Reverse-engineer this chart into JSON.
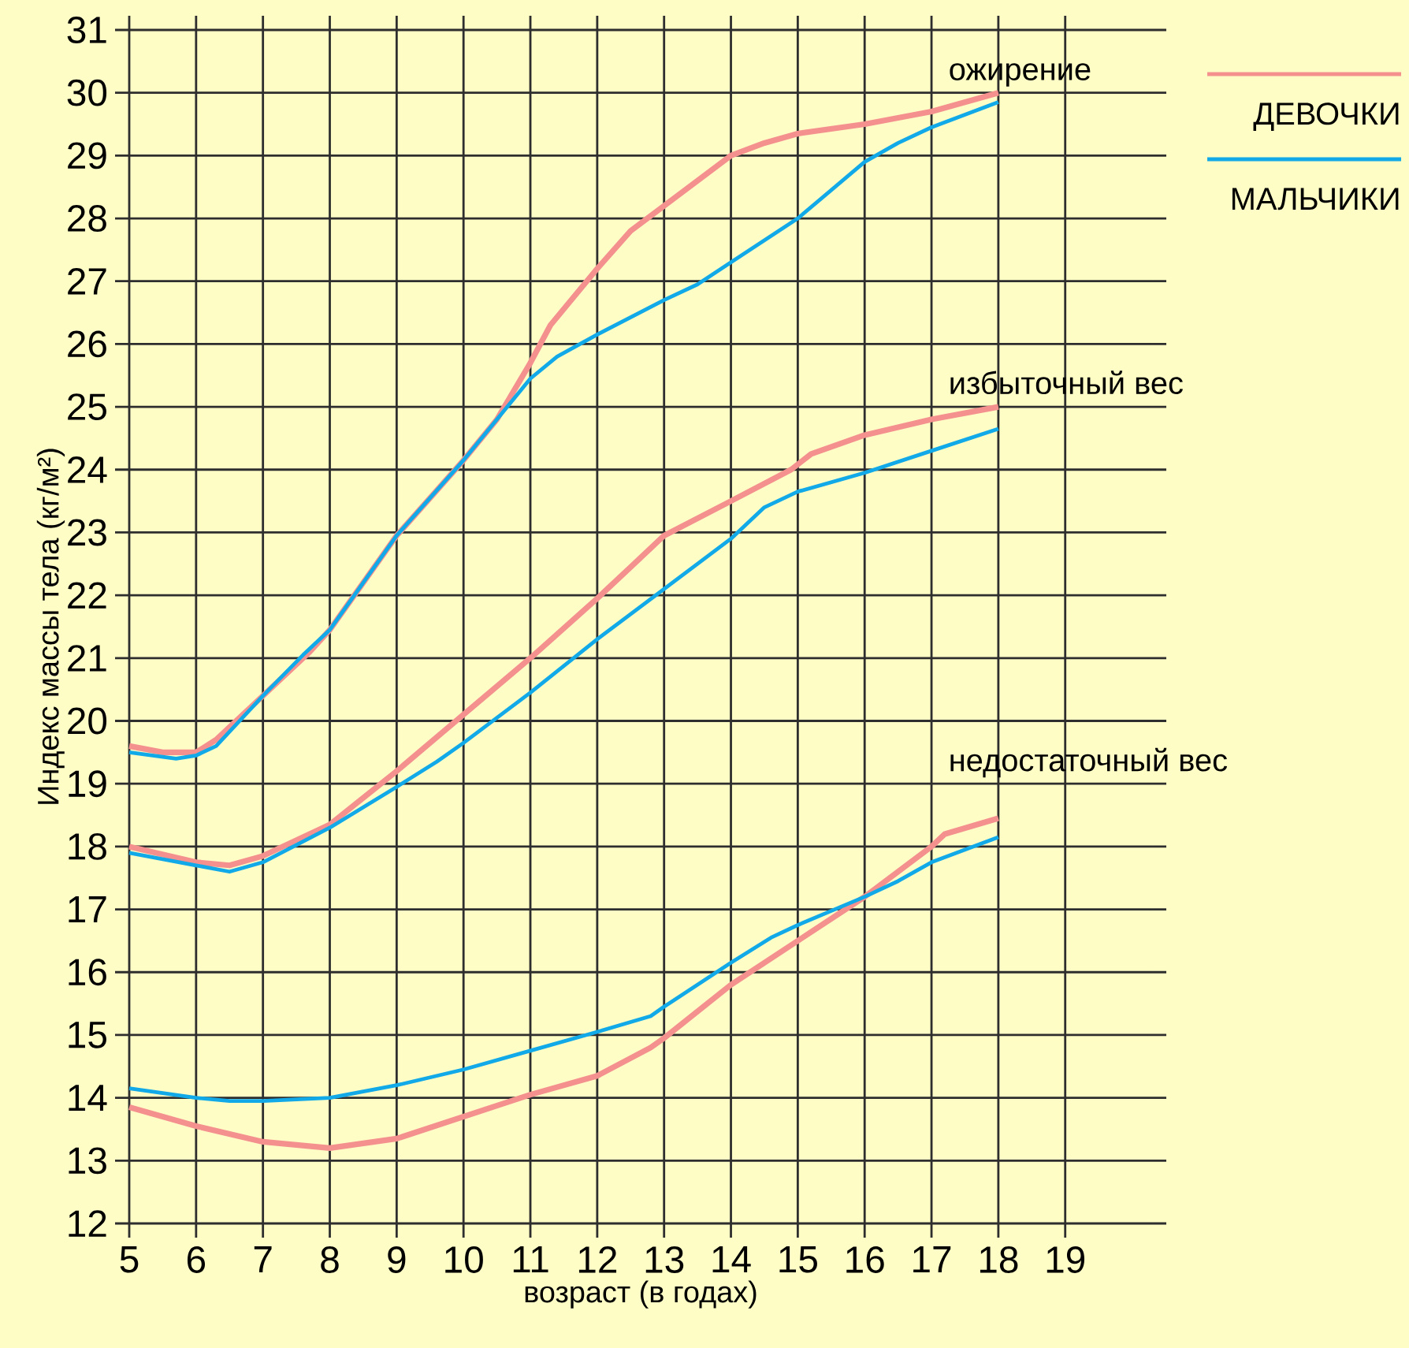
{
  "chart_data": {
    "type": "line",
    "xlabel": "возраст (в годах)",
    "ylabel": "Индекс массы тела (кг/м²)",
    "xlim": [
      5,
      20.3
    ],
    "ylim": [
      12,
      31
    ],
    "xticks": [
      5,
      6,
      7,
      8,
      9,
      10,
      11,
      12,
      13,
      14,
      15,
      16,
      17,
      18,
      19
    ],
    "yticks": [
      12,
      13,
      14,
      15,
      16,
      17,
      18,
      19,
      20,
      21,
      22,
      23,
      24,
      25,
      26,
      27,
      28,
      29,
      30,
      31
    ],
    "grid": true,
    "legend": "top right",
    "marker": "none",
    "line_style": "solid",
    "annotations": [
      "ожирение",
      "избыточный вес",
      "недостаточный вес"
    ],
    "series": [
      {
        "name": "ДЕВОЧКИ",
        "color": "#f4918f",
        "x": [
          5,
          5.5,
          6,
          6.3,
          7,
          7.7,
          8,
          9,
          10,
          10.5,
          11,
          11.3,
          12,
          12.5,
          13,
          14,
          14.5,
          15,
          16,
          17,
          18
        ],
        "values": [
          19.6,
          19.5,
          19.5,
          19.7,
          20.4,
          21.1,
          21.45,
          22.95,
          24.15,
          24.8,
          25.7,
          26.3,
          27.2,
          27.8,
          28.2,
          29.0,
          29.2,
          29.35,
          29.5,
          29.7,
          30.0
        ]
      },
      {
        "name": "МАЛЬЧИКИ",
        "color": "#12a9e8",
        "x": [
          5,
          5.7,
          6,
          6.3,
          7,
          7.6,
          8,
          9,
          10,
          10.5,
          11,
          11.4,
          12,
          13,
          13.5,
          14,
          15,
          16,
          16.5,
          17,
          18
        ],
        "values": [
          19.5,
          19.4,
          19.45,
          19.6,
          20.4,
          21.05,
          21.45,
          22.95,
          24.15,
          24.8,
          25.45,
          25.8,
          26.15,
          26.7,
          26.95,
          27.3,
          28.0,
          28.9,
          29.2,
          29.45,
          29.85
        ]
      },
      {
        "color": "#f4918f",
        "x": [
          5,
          6,
          6.5,
          7,
          8,
          9,
          10,
          11,
          12,
          12.5,
          13,
          14,
          14.9,
          15.2,
          16,
          17,
          18
        ],
        "values": [
          18.0,
          17.75,
          17.7,
          17.85,
          18.35,
          19.2,
          20.1,
          21.0,
          21.95,
          22.45,
          22.95,
          23.5,
          24.0,
          24.25,
          24.55,
          24.8,
          25.0
        ]
      },
      {
        "color": "#12a9e8",
        "x": [
          5,
          6,
          6.5,
          7,
          8,
          9,
          9.6,
          10,
          11,
          12,
          13,
          14,
          14.5,
          15,
          16,
          17,
          18
        ],
        "values": [
          17.9,
          17.7,
          17.6,
          17.75,
          18.3,
          18.95,
          19.35,
          19.65,
          20.45,
          21.3,
          22.1,
          22.9,
          23.4,
          23.65,
          23.95,
          24.3,
          24.65
        ]
      },
      {
        "color": "#f4918f",
        "x": [
          5,
          6,
          7,
          8,
          9,
          10,
          11,
          12,
          12.8,
          13,
          14,
          15,
          16,
          17,
          17.2,
          18
        ],
        "values": [
          13.85,
          13.55,
          13.3,
          13.2,
          13.35,
          13.7,
          14.05,
          14.35,
          14.8,
          14.95,
          15.8,
          16.5,
          17.2,
          18.0,
          18.2,
          18.45
        ]
      },
      {
        "color": "#12a9e8",
        "x": [
          5,
          6,
          6.5,
          7,
          8,
          9,
          10,
          11,
          12,
          12.8,
          13,
          14,
          14.6,
          15,
          16,
          16.5,
          17,
          18
        ],
        "values": [
          14.15,
          14.0,
          13.95,
          13.95,
          14.0,
          14.2,
          14.45,
          14.75,
          15.05,
          15.3,
          15.45,
          16.15,
          16.55,
          16.75,
          17.2,
          17.45,
          17.75,
          18.15
        ]
      }
    ]
  }
}
